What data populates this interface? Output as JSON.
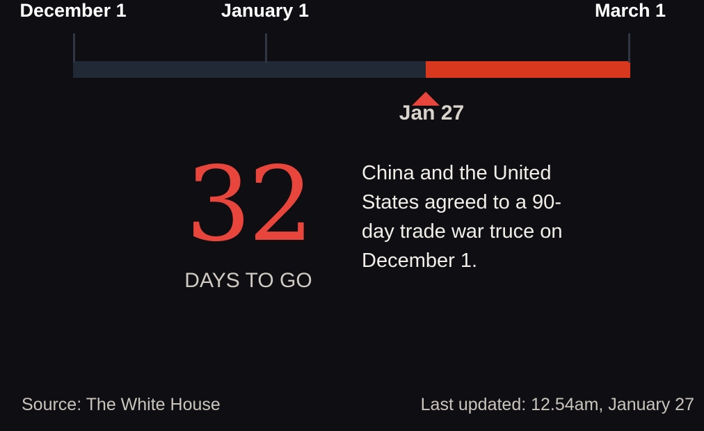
{
  "chart_data": {
    "type": "timeline",
    "start": "2018-12-01",
    "end": "2019-03-01",
    "ticks": [
      {
        "date": "2018-12-01",
        "label": "December 1"
      },
      {
        "date": "2019-01-01",
        "label": "January 1"
      },
      {
        "date": "2019-03-01",
        "label": "March 1"
      }
    ],
    "marker": {
      "date": "2019-01-27",
      "label": "Jan 27"
    },
    "elapsed_color": "#222936",
    "remaining_color": "#d8381e",
    "marker_color": "#e8453c"
  },
  "countdown": {
    "value": "32",
    "label": "DAYS TO GO"
  },
  "description": "China and the United States agreed to a 90-day trade war truce on December 1.",
  "footer": {
    "source": "Source: The White House",
    "updated": "Last updated: 12.54am, January 27"
  }
}
